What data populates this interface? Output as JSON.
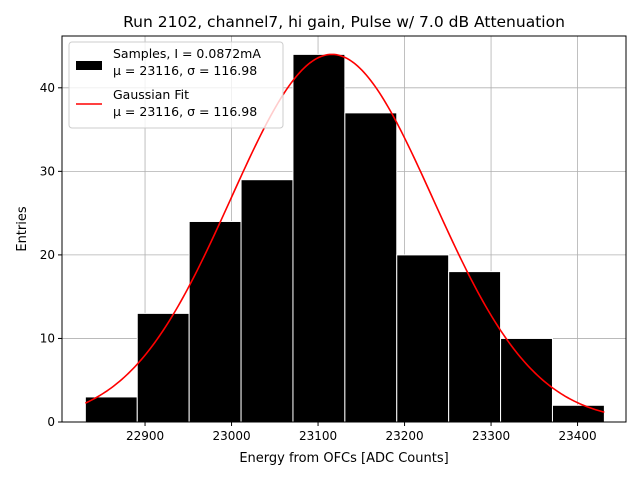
{
  "chart_data": {
    "type": "bar",
    "title": "Run 2102, channel7, hi gain, Pulse w/ 7.0 dB Attenuation",
    "xlabel": "Energy from OFCs [ADC Counts]",
    "ylabel": "Entries",
    "xlim": [
      22804,
      23456
    ],
    "ylim": [
      0,
      46.2
    ],
    "xticks": [
      22900,
      23000,
      23100,
      23200,
      23300,
      23400
    ],
    "yticks": [
      0,
      10,
      20,
      30,
      40
    ],
    "grid": true,
    "legend_position": "top-left",
    "bins": [
      {
        "x0": 22831,
        "x1": 22891,
        "count": 3
      },
      {
        "x0": 22891,
        "x1": 22951,
        "count": 13
      },
      {
        "x0": 22951,
        "x1": 23011,
        "count": 24
      },
      {
        "x0": 23011,
        "x1": 23071,
        "count": 29
      },
      {
        "x0": 23071,
        "x1": 23131,
        "count": 44
      },
      {
        "x0": 23131,
        "x1": 23191,
        "count": 37
      },
      {
        "x0": 23191,
        "x1": 23251,
        "count": 20
      },
      {
        "x0": 23251,
        "x1": 23311,
        "count": 18
      },
      {
        "x0": 23311,
        "x1": 23371,
        "count": 10
      },
      {
        "x0": 23371,
        "x1": 23431,
        "count": 2
      }
    ],
    "series": [
      {
        "name": "Samples, I = 0.0872mA",
        "name_line2": "μ = 23116, σ = 116.98",
        "kind": "histogram",
        "color": "#000000"
      },
      {
        "name": "Gaussian Fit",
        "name_line2": "μ = 23116, σ = 116.98",
        "kind": "line",
        "color": "#ff0000",
        "mu": 23116,
        "sigma": 116.98,
        "amplitude": 44.0,
        "x_range": [
          22831,
          23431
        ]
      }
    ]
  }
}
